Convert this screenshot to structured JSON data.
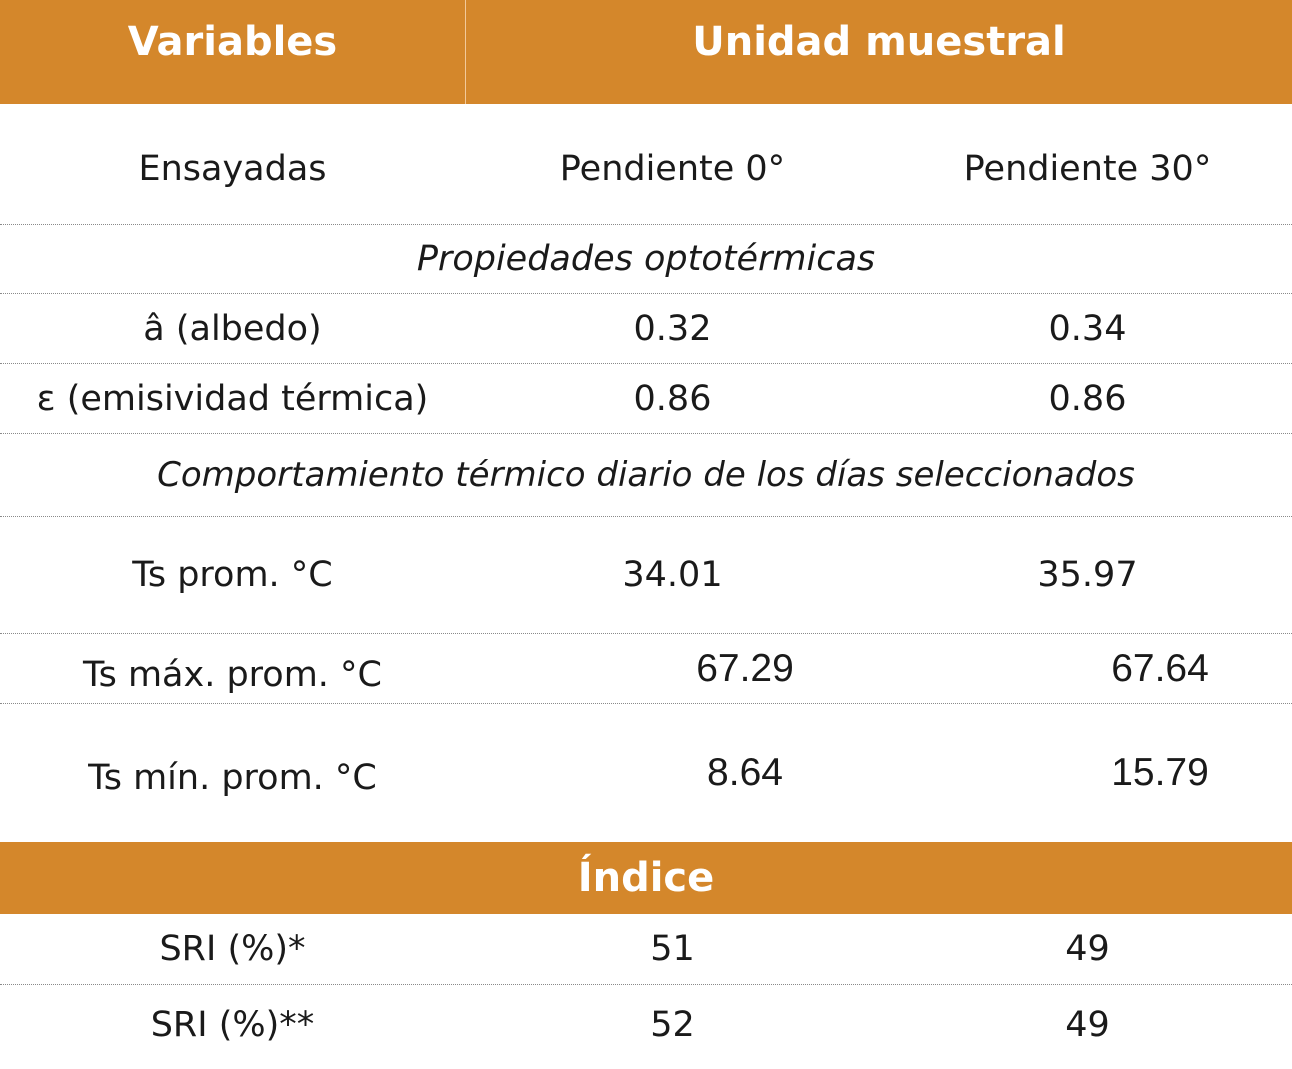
{
  "header": {
    "variables": "Variables",
    "unidad": "Unidad muestral"
  },
  "subheader": {
    "ensayadas": "Ensayadas",
    "pendiente0": "Pendiente 0°",
    "pendiente30": "Pendiente 30°"
  },
  "section_opto": "Propiedades optotérmicas",
  "albedo": {
    "label": "â (albedo)",
    "p0": "0.32",
    "p30": "0.34"
  },
  "emisividad": {
    "label": "ε (emisividad térmica)",
    "p0": "0.86",
    "p30": "0.86"
  },
  "section_termico": "Comportamiento térmico diario de los días seleccionados",
  "ts_prom": {
    "label": "Ts prom. °C",
    "p0": "34.01",
    "p30": "35.97"
  },
  "ts_max": {
    "label": "Ts máx. prom. °C",
    "p0": "67.29",
    "p30": "67.64"
  },
  "ts_min": {
    "label": "Ts mín. prom. °C",
    "p0": "8.64",
    "p30": "15.79"
  },
  "indice": "Índice",
  "sri1": {
    "label": "SRI (%)*",
    "p0": "51",
    "p30": "49"
  },
  "sri2": {
    "label": "SRI (%)**",
    "p0": "52",
    "p30": "49"
  },
  "colors": {
    "accent": "#d4872b",
    "text": "#1a1a1a"
  }
}
